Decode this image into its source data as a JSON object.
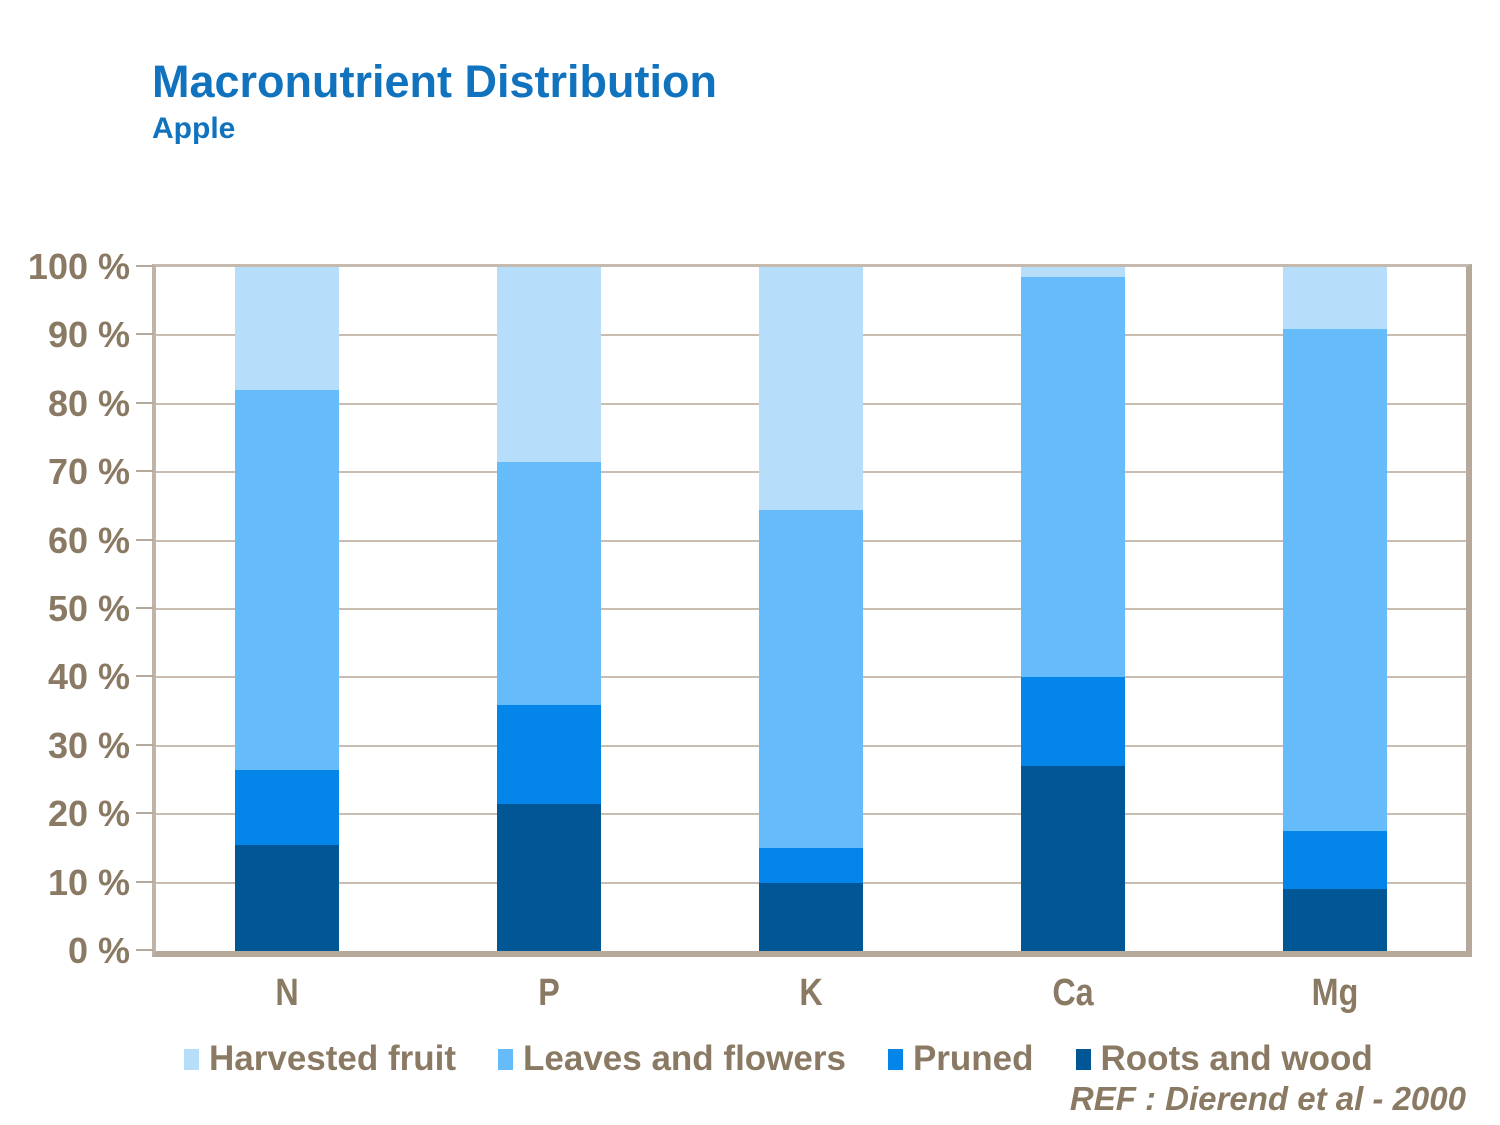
{
  "slide": {
    "title": "Macronutrient Distribution",
    "subtitle": "Apple",
    "ref": "REF :  Dierend et al - 2000"
  },
  "colors": {
    "title_blue": "#1173BE",
    "label_brown": "#8A7A64",
    "axis_tan": "#B5A99C",
    "gridline_tan": "#C9BDB2",
    "harvested_fruit": "#B6DEFB",
    "leaves_and_flowers": "#66BBFA",
    "pruned": "#0485E9",
    "roots_and_wood": "#015795"
  },
  "chart_data": {
    "type": "bar",
    "stacked": true,
    "title": "Macronutrient Distribution",
    "subtitle": "Apple",
    "categories": [
      "N",
      "P",
      "K",
      "Ca",
      "Mg"
    ],
    "series": [
      {
        "name": "Harvested fruit",
        "color": "#B6DEFB",
        "values": [
          18,
          28.5,
          35.5,
          1.5,
          9
        ]
      },
      {
        "name": "Leaves and flowers",
        "color": "#66BBFA",
        "values": [
          55.5,
          35.5,
          49.5,
          58.5,
          73.5
        ]
      },
      {
        "name": "Pruned",
        "color": "#0485E9",
        "values": [
          11,
          14.5,
          5,
          13,
          8.5
        ]
      },
      {
        "name": "Roots and wood",
        "color": "#015795",
        "values": [
          15.5,
          21.5,
          10,
          27,
          9
        ]
      }
    ],
    "y_ticks": [
      "0 %",
      "10 %",
      "20 %",
      "30 %",
      "40 %",
      "50 %",
      "60 %",
      "70 %",
      "80 %",
      "90 %",
      "100 %"
    ],
    "ylim": [
      0,
      100
    ],
    "xlabel": "",
    "ylabel": "",
    "grid": true,
    "legend_position": "bottom",
    "note": "stack order top to bottom: Harvested fruit, Leaves and flowers, Pruned, Roots and wood"
  }
}
